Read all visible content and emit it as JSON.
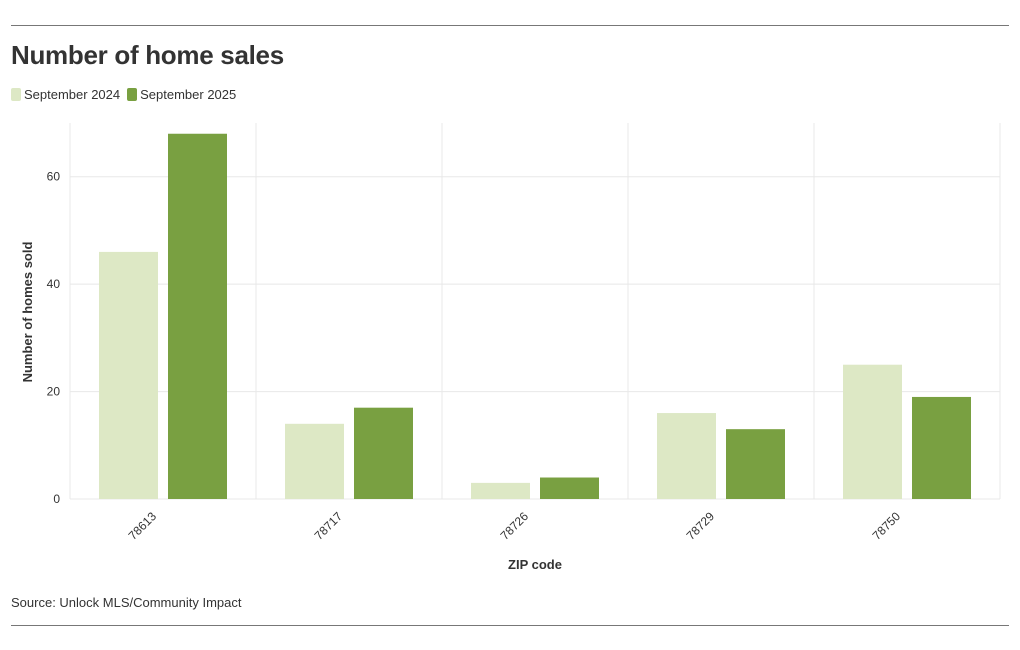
{
  "header": {
    "title": "Number of home sales"
  },
  "footer": {
    "source": "Source: Unlock MLS/Community Impact"
  },
  "colors": {
    "series_2024": "#dde8c5",
    "series_2025": "#79a041",
    "grid": "#e8e8e8",
    "text": "#333333"
  },
  "chart_data": {
    "type": "bar",
    "title": "Number of home sales",
    "xlabel": "ZIP code",
    "ylabel": "Number of homes sold",
    "categories": [
      "78613",
      "78717",
      "78726",
      "78729",
      "78750"
    ],
    "series": [
      {
        "name": "September 2024",
        "values": [
          46,
          14,
          3,
          16,
          25
        ]
      },
      {
        "name": "September 2025",
        "values": [
          68,
          17,
          4,
          13,
          19
        ]
      }
    ],
    "ylim": [
      0,
      70
    ],
    "yticks": [
      0,
      20,
      40,
      60
    ],
    "grid": true,
    "legend": "top-left"
  }
}
